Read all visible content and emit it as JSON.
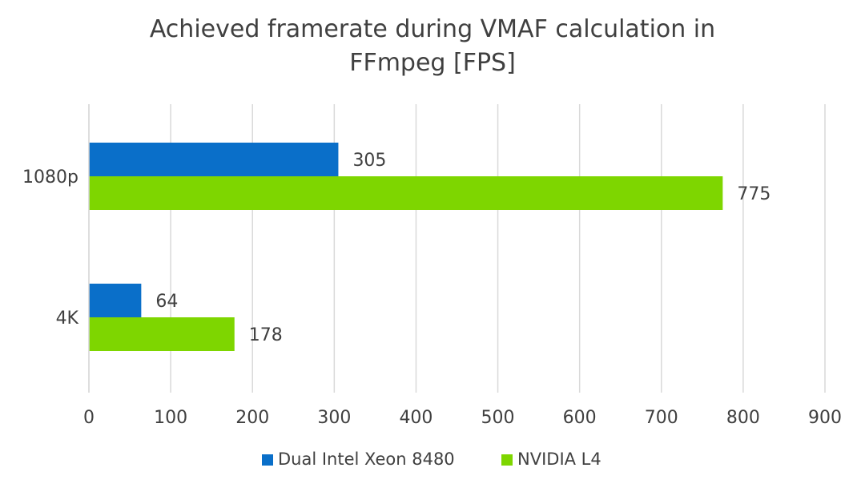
{
  "chart_data": {
    "type": "bar",
    "orientation": "horizontal",
    "title_lines": [
      "Achieved framerate during VMAF calculation in",
      "FFmpeg [FPS]"
    ],
    "categories": [
      "1080p",
      "4K"
    ],
    "series": [
      {
        "name": "Dual Intel Xeon 8480",
        "color": "#0a6fc9",
        "values": [
          305,
          64
        ]
      },
      {
        "name": "NVIDIA L4",
        "color": "#7ed600",
        "values": [
          775,
          178
        ]
      }
    ],
    "xlim": [
      0,
      900
    ],
    "x_ticks": [
      0,
      100,
      200,
      300,
      400,
      500,
      600,
      700,
      800,
      900
    ],
    "grid": true,
    "data_labels": true,
    "legend_position": "bottom",
    "xlabel": "",
    "ylabel": ""
  },
  "colors": {
    "text": "#404040",
    "grid": "#d9d9d9",
    "axis": "#d9d9d9"
  }
}
